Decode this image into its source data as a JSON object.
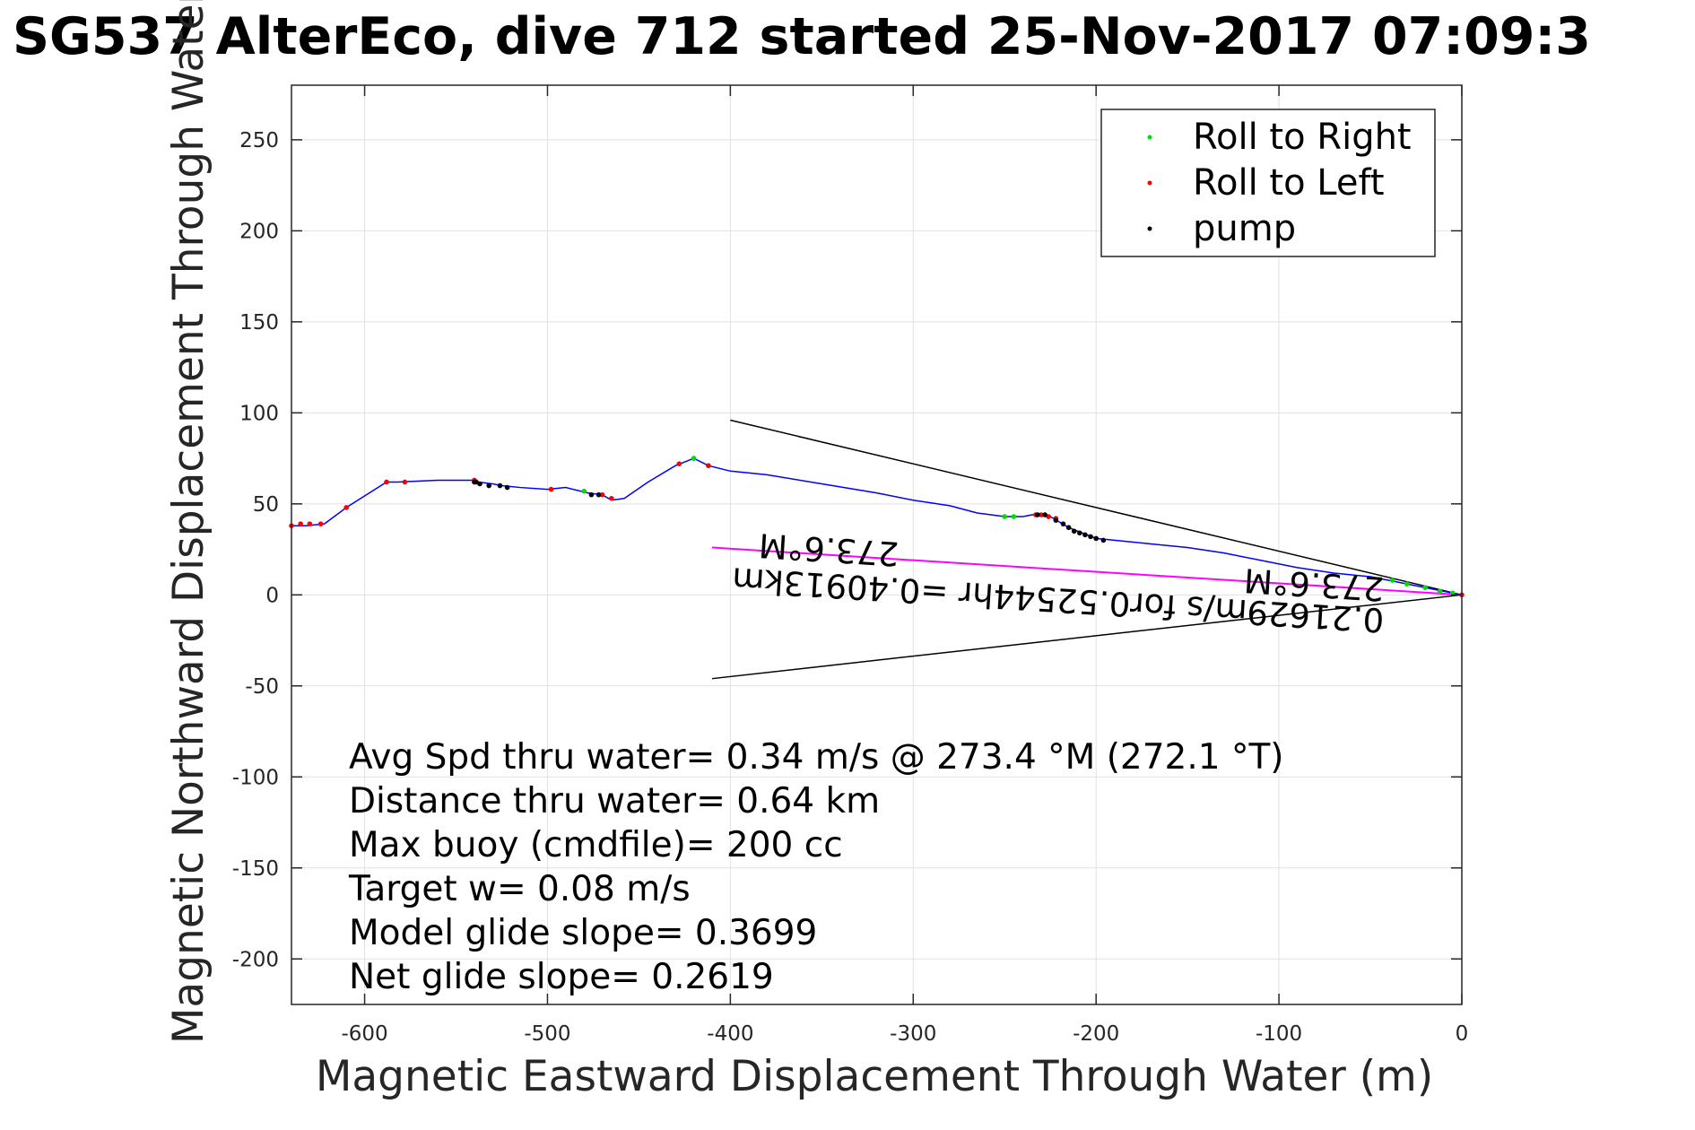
{
  "chart_data": {
    "type": "line",
    "title": "SG537 AlterEco, dive 712 started 25-Nov-2017 07:09:3",
    "xlabel": "Magnetic Eastward Displacement Through Water (m)",
    "ylabel": "Magnetic Northward Displacement Through Water (",
    "xlim": [
      -640,
      0
    ],
    "ylim": [
      -225,
      280
    ],
    "xticks": [
      -600,
      -500,
      -400,
      -300,
      -200,
      -100,
      0
    ],
    "yticks": [
      -200,
      -150,
      -100,
      -50,
      0,
      50,
      100,
      150,
      200,
      250
    ],
    "xtick_labels": [
      "-600",
      "-500",
      "-400",
      "-300",
      "-200",
      "-100",
      "0"
    ],
    "ytick_labels": [
      "-200",
      "-150",
      "-100",
      "-50",
      "0",
      "50",
      "100",
      "150",
      "200",
      "250"
    ],
    "grid": true,
    "legend_position": "top-right",
    "legend": [
      "Roll to Right",
      "Roll to Left",
      "pump"
    ],
    "colors": {
      "track": "#0000ff",
      "roll_right": "#00dd00",
      "roll_left": "#ff0000",
      "pump": "#000000",
      "current_line": "#ff00ff",
      "cone": "#000000",
      "grid": "#e1e1e1",
      "axes": "#262626"
    },
    "track": {
      "x": [
        0,
        -15,
        -30,
        -50,
        -70,
        -90,
        -110,
        -130,
        -150,
        -170,
        -190,
        -200,
        -205,
        -210,
        -215,
        -220,
        -225,
        -230,
        -235,
        -240,
        -250,
        -265,
        -280,
        -300,
        -320,
        -350,
        -380,
        -400,
        -412,
        -420,
        -430,
        -445,
        -458,
        -465,
        -470,
        -478,
        -490,
        -500,
        -515,
        -525,
        -530,
        -538,
        -540,
        -560,
        -582,
        -588,
        -610,
        -622,
        -632,
        -640
      ],
      "y": [
        0,
        3,
        6,
        10,
        12,
        15,
        19,
        23,
        26,
        28,
        30,
        31,
        33,
        35,
        37,
        40,
        43,
        44,
        44,
        43,
        43,
        45,
        49,
        52,
        56,
        61,
        66,
        68,
        71,
        75,
        71,
        62,
        53,
        52,
        55,
        56,
        59,
        58,
        59,
        60,
        61,
        62,
        63,
        63,
        62,
        62,
        48,
        39,
        38,
        38
      ]
    },
    "roll_right_points": {
      "x": [
        -5,
        -12,
        -20,
        -30,
        -38,
        -245,
        -250,
        -420,
        -480
      ],
      "y": [
        1,
        2,
        4,
        6,
        8,
        43,
        43,
        75,
        57
      ]
    },
    "roll_left_points": {
      "x": [
        0,
        -222,
        -226,
        -230,
        -233,
        -428,
        -412,
        -470,
        -465,
        -498,
        -540,
        -578,
        -588,
        -610,
        -624,
        -630,
        -635,
        -640
      ],
      "y": [
        0,
        42,
        43,
        44,
        44,
        72,
        71,
        55,
        53,
        58,
        63,
        62,
        62,
        48,
        39,
        39,
        39,
        38
      ]
    },
    "pump_points": {
      "x": [
        -196,
        -200,
        -203,
        -206,
        -209,
        -212,
        -215,
        -218,
        -222,
        -228,
        -232,
        -472,
        -476,
        -522,
        -526,
        -532,
        -537,
        -539,
        -540
      ],
      "y": [
        30,
        31,
        32,
        33,
        34,
        35,
        37,
        39,
        41,
        44,
        44,
        55,
        55,
        59,
        60,
        60,
        61,
        62,
        62
      ]
    },
    "current_line": {
      "x": [
        0,
        -410
      ],
      "y": [
        0,
        26
      ]
    },
    "cone_upper": {
      "x": [
        0,
        -400
      ],
      "y": [
        0,
        96
      ]
    },
    "cone_lower": {
      "x": [
        0,
        -410
      ],
      "y": [
        0,
        -46
      ]
    },
    "rotated_annotations": [
      "0.21629m/s for0.52544hr =0.40913km",
      "273.6°M",
      "273.6°M"
    ],
    "stats": [
      "Avg Spd thru water=  0.34 m/s @ 273.4 °M (272.1 °T)",
      "Distance thru water=  0.64 km",
      "Max buoy (cmdfile)= 200 cc",
      "Target w= 0.08 m/s",
      "Model glide slope= 0.3699",
      "Net glide slope= 0.2619"
    ]
  }
}
